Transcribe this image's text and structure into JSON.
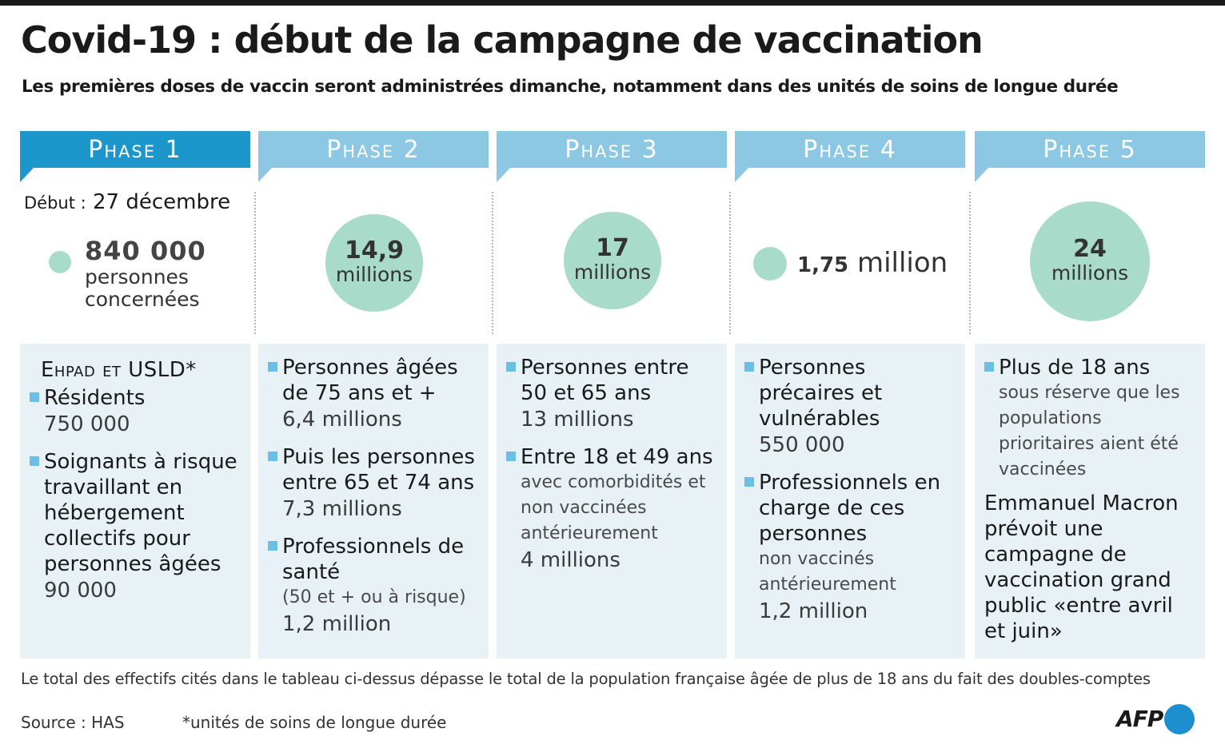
{
  "title": "Covid-19 : début de la campagne de vaccination",
  "subtitle": "Les premières doses de vaccin seront administrées dimanche, notamment dans des unités de soins de longue durée",
  "colors": {
    "phase_active": "#1d96cc",
    "phase": "#8cc7e3",
    "circle": "#a8dbc9",
    "card": "#e8f1f6",
    "bullet": "#6bbfe3",
    "afp_dot": "#1d8fcf"
  },
  "phases": [
    {
      "label": "Phase 1",
      "debut_label": "Début :",
      "debut_date": "27 décembre",
      "count": "840 000",
      "count_desc": "personnes concernées",
      "group_title": "Ehpad et USLD*",
      "items": [
        {
          "title": "Résidents",
          "value": "750 000"
        },
        {
          "title": "Soignants à risque travaillant en hébergement collectifs pour personnes âgées",
          "value": "90 000"
        }
      ]
    },
    {
      "label": "Phase 2",
      "count_num": "14,9",
      "count_unit": "millions",
      "items": [
        {
          "title": "Personnes âgées de 75 ans et +",
          "value": "6,4 millions"
        },
        {
          "title": "Puis les personnes entre 65 et 74 ans",
          "value": "7,3 millions"
        },
        {
          "title": "Professionnels de santé",
          "note": "(50 et + ou à risque)",
          "value": "1,2 million"
        }
      ]
    },
    {
      "label": "Phase 3",
      "count_num": "17",
      "count_unit": "millions",
      "items": [
        {
          "title": "Personnes entre 50 et 65 ans",
          "value": "13 millions"
        },
        {
          "title": "Entre 18 et 49 ans",
          "note": "avec comorbidités et non vaccinées antérieurement",
          "value": "4 millions"
        }
      ]
    },
    {
      "label": "Phase 4",
      "count_num": "1,75",
      "count_unit": "million",
      "items": [
        {
          "title": "Personnes précaires et vulnérables",
          "value": "550 000"
        },
        {
          "title": "Professionnels en charge de ces personnes",
          "note": "non vaccinés antérieurement",
          "value": "1,2 million"
        }
      ]
    },
    {
      "label": "Phase 5",
      "count_num": "24",
      "count_unit": "millions",
      "items": [
        {
          "title": "Plus de 18 ans",
          "note": "sous réserve que les populations prioritaires aient été vaccinées"
        }
      ],
      "extra": "Emmanuel Macron prévoit une campagne de vaccination grand public «entre avril et juin»"
    }
  ],
  "footnote_total": "Le total des effectifs cités dans le tableau ci-dessus dépasse le total de la population française âgée de plus de 18 ans du fait des doubles-comptes",
  "source": "Source : HAS",
  "asterisk_note": "*unités de soins de longue durée",
  "logo": "AFP"
}
